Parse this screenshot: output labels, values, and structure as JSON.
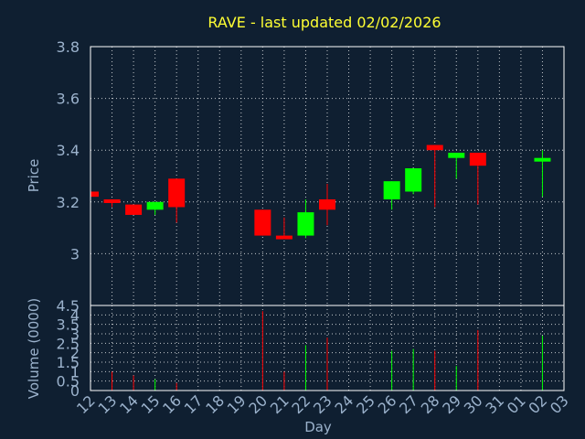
{
  "chart_data": {
    "type": "candlestick",
    "title": "RAVE - last updated 02/02/2026",
    "xlabel": "Day",
    "ylabel_price": "Price",
    "ylabel_volume": "Volume (0000)",
    "price_ylim": [
      2.8,
      3.8
    ],
    "price_yticks": [
      "3.8",
      "3.6",
      "3.4",
      "3.2",
      "3"
    ],
    "volume_ylim": [
      0,
      4.5
    ],
    "volume_yticks": [
      "4.5",
      "4",
      "3.5",
      "3",
      "2.5",
      "2",
      "1.5",
      "1",
      "0.5",
      "0"
    ],
    "x_ticks": [
      "12",
      "13",
      "14",
      "15",
      "16",
      "17",
      "18",
      "19",
      "20",
      "21",
      "22",
      "23",
      "24",
      "25",
      "26",
      "27",
      "28",
      "29",
      "30",
      "31",
      "01",
      "02",
      "03"
    ],
    "grid": true,
    "colors": {
      "up": "#00ff00",
      "down": "#ff0000",
      "neutral": "#00ff00",
      "background": "#0f1f31"
    },
    "candles": [
      {
        "day": "12",
        "open": 3.24,
        "high": 3.24,
        "low": 3.22,
        "close": 3.22,
        "volume": 0.0
      },
      {
        "day": "13",
        "open": 3.21,
        "high": 3.21,
        "low": 3.18,
        "close": 3.2,
        "volume": 1.0
      },
      {
        "day": "14",
        "open": 3.19,
        "high": 3.19,
        "low": 3.15,
        "close": 3.15,
        "volume": 0.8
      },
      {
        "day": "15",
        "open": 3.17,
        "high": 3.2,
        "low": 3.15,
        "close": 3.2,
        "volume": 0.6
      },
      {
        "day": "16",
        "open": 3.29,
        "high": 3.29,
        "low": 3.12,
        "close": 3.18,
        "volume": 0.4
      },
      {
        "day": "20",
        "open": 3.17,
        "high": 3.17,
        "low": 3.07,
        "close": 3.07,
        "volume": 4.2
      },
      {
        "day": "21",
        "open": 3.07,
        "high": 3.14,
        "low": 3.06,
        "close": 3.06,
        "volume": 1.0
      },
      {
        "day": "22",
        "open": 3.07,
        "high": 3.21,
        "low": 3.06,
        "close": 3.16,
        "volume": 2.4
      },
      {
        "day": "23",
        "open": 3.21,
        "high": 3.27,
        "low": 3.11,
        "close": 3.17,
        "volume": 2.8
      },
      {
        "day": "26",
        "open": 3.21,
        "high": 3.28,
        "low": 3.17,
        "close": 3.28,
        "volume": 2.1
      },
      {
        "day": "27",
        "open": 3.24,
        "high": 3.33,
        "low": 3.23,
        "close": 3.33,
        "volume": 2.2
      },
      {
        "day": "28",
        "open": 3.42,
        "high": 3.42,
        "low": 3.18,
        "close": 3.4,
        "volume": 2.1
      },
      {
        "day": "29",
        "open": 3.37,
        "high": 3.39,
        "low": 3.29,
        "close": 3.39,
        "volume": 1.3
      },
      {
        "day": "30",
        "open": 3.39,
        "high": 3.39,
        "low": 3.19,
        "close": 3.34,
        "volume": 3.2
      },
      {
        "day": "02",
        "open": 3.36,
        "high": 3.4,
        "low": 3.22,
        "close": 3.37,
        "volume": 2.9
      }
    ]
  }
}
